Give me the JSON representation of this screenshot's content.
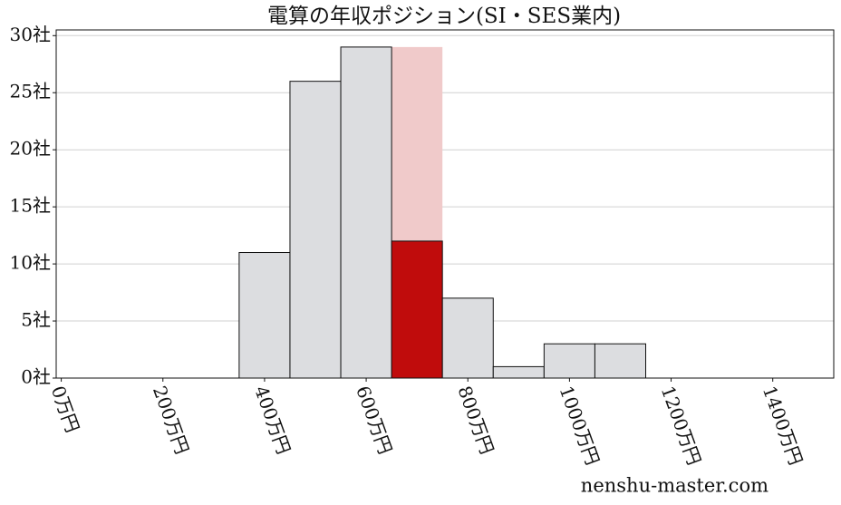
{
  "chart_data": {
    "type": "histogram",
    "title": "電算の年収ポジション(SI・SES業内)",
    "bins": [
      350,
      450,
      550,
      650,
      750,
      850,
      950,
      1050,
      1150
    ],
    "counts": [
      11,
      26,
      29,
      12,
      7,
      1,
      3,
      3
    ],
    "color": "#dcdde0",
    "edge_color": "#111111",
    "highlight": {
      "index": 3,
      "color": "#c00c0c",
      "band_top": 29,
      "band_color": "#f0caca"
    },
    "xlim": [
      -10,
      1520
    ],
    "ylim": [
      0,
      30.5
    ],
    "xticks": [
      {
        "value": 0,
        "label": "0万円"
      },
      {
        "value": 200,
        "label": "200万円"
      },
      {
        "value": 400,
        "label": "400万円"
      },
      {
        "value": 600,
        "label": "600万円"
      },
      {
        "value": 800,
        "label": "800万円"
      },
      {
        "value": 1000,
        "label": "1000万円"
      },
      {
        "value": 1200,
        "label": "1200万円"
      },
      {
        "value": 1400,
        "label": "1400万円"
      }
    ],
    "yticks": [
      {
        "value": 0,
        "label": "0社"
      },
      {
        "value": 5,
        "label": "5社"
      },
      {
        "value": 10,
        "label": "10社"
      },
      {
        "value": 15,
        "label": "15社"
      },
      {
        "value": 20,
        "label": "20社"
      },
      {
        "value": 25,
        "label": "25社"
      },
      {
        "value": 30,
        "label": "30社"
      }
    ],
    "grid": true,
    "watermark": "nenshu-master.com"
  }
}
